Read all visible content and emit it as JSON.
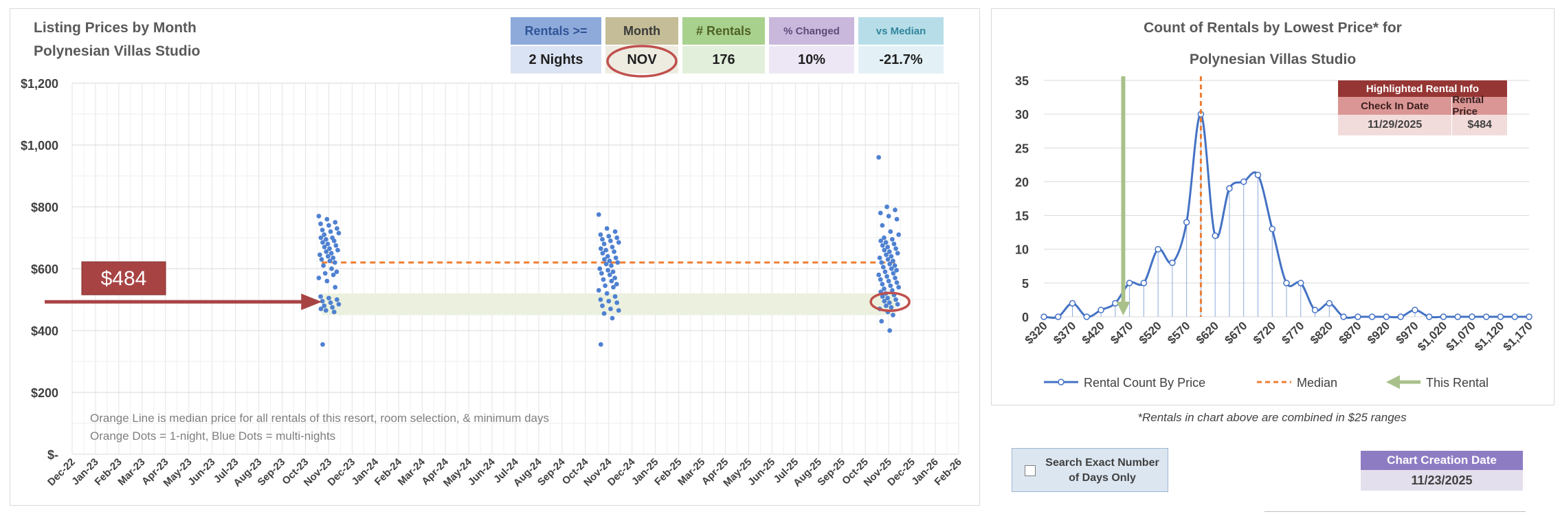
{
  "left": {
    "title_line1": "Listing Prices by Month",
    "title_line2": "Polynesian Villas Studio",
    "header": [
      {
        "label": "Rentals >=",
        "value": "2 Nights",
        "head_bg": "#8eaadb",
        "head_fg": "#2f5597",
        "val_bg": "#dae3f3"
      },
      {
        "label": "Month",
        "value": "NOV",
        "head_bg": "#c4bd97",
        "head_fg": "#3a3a3a",
        "val_bg": "#eeece1"
      },
      {
        "label": "# Rentals",
        "value": "176",
        "head_bg": "#a9d18e",
        "head_fg": "#4f6228",
        "val_bg": "#e2efda"
      },
      {
        "label": "% Changed",
        "value": "10%",
        "head_bg": "#c9b8dc",
        "head_fg": "#5f497a",
        "val_bg": "#ede7f5"
      },
      {
        "label": "vs Median",
        "value": "-21.7%",
        "head_bg": "#b7dee8",
        "head_fg": "#31859c",
        "val_bg": "#e3f1f6"
      }
    ],
    "price_callout": "$484",
    "note_line1": "Orange Line is median price for all rentals of this resort, room selection, & minimum days",
    "note_line2": "Orange Dots = 1-night, Blue Dots = multi-nights"
  },
  "chart_data": [
    {
      "type": "scatter",
      "title": "Listing Prices by Month",
      "subtitle": "Polynesian Villas Studio",
      "x_categories": [
        "Dec-22",
        "Jan-23",
        "Feb-23",
        "Mar-23",
        "Apr-23",
        "May-23",
        "Jun-23",
        "Jul-23",
        "Aug-23",
        "Sep-23",
        "Oct-23",
        "Nov-23",
        "Dec-23",
        "Jan-24",
        "Feb-24",
        "Mar-24",
        "Apr-24",
        "May-24",
        "Jun-24",
        "Jul-24",
        "Aug-24",
        "Sep-24",
        "Oct-24",
        "Nov-24",
        "Dec-24",
        "Jan-25",
        "Feb-25",
        "Mar-25",
        "Apr-25",
        "May-25",
        "Jun-25",
        "Jul-25",
        "Aug-25",
        "Sep-25",
        "Oct-25",
        "Nov-25",
        "Dec-25",
        "Jan-26",
        "Feb-26"
      ],
      "y_ticks": [
        "$-",
        "$200",
        "$400",
        "$600",
        "$800",
        "$1,000",
        "$1,200"
      ],
      "ylim": [
        0,
        1200
      ],
      "median": 620,
      "highlight_price": 484,
      "highlight_band": [
        450,
        520
      ],
      "grid": true,
      "series": [
        {
          "values": [
            {
              "x": "Nov-23",
              "y": [
                770,
                760,
                750,
                745,
                740,
                730,
                725,
                720,
                715,
                710,
                700,
                700,
                695,
                690,
                685,
                680,
                675,
                670,
                665,
                660,
                655,
                650,
                645,
                640,
                635,
                630,
                625,
                620,
                610,
                600,
                590,
                585,
                580,
                570,
                560,
                540,
                510,
                505,
                500,
                495,
                490,
                485,
                480,
                475,
                470,
                465,
                460,
                355
              ]
            },
            {
              "x": "Nov-24",
              "y": [
                775,
                730,
                720,
                710,
                705,
                700,
                695,
                690,
                685,
                680,
                670,
                665,
                660,
                655,
                650,
                640,
                635,
                630,
                625,
                620,
                615,
                610,
                600,
                595,
                590,
                585,
                580,
                570,
                565,
                560,
                550,
                545,
                540,
                530,
                520,
                510,
                500,
                495,
                490,
                480,
                470,
                465,
                455,
                440,
                355
              ]
            },
            {
              "x": "Nov-25",
              "y": [
                960,
                800,
                790,
                780,
                770,
                760,
                740,
                720,
                710,
                700,
                695,
                690,
                685,
                680,
                675,
                670,
                665,
                660,
                655,
                650,
                645,
                640,
                635,
                630,
                625,
                620,
                615,
                610,
                605,
                600,
                595,
                590,
                585,
                580,
                575,
                570,
                565,
                560,
                555,
                550,
                545,
                540,
                535,
                530,
                525,
                520,
                515,
                510,
                505,
                500,
                495,
                490,
                485,
                480,
                475,
                470,
                460,
                450,
                430,
                400
              ]
            }
          ]
        }
      ]
    },
    {
      "type": "line",
      "title": "Count of Rentals by Lowest Price* for",
      "subtitle": "Polynesian Villas Studio",
      "x_tick_labels": [
        "$320",
        "$370",
        "$420",
        "$470",
        "$520",
        "$570",
        "$620",
        "$670",
        "$720",
        "$770",
        "$820",
        "$870",
        "$920",
        "$970",
        "$1,020",
        "$1,070",
        "$1,120",
        "$1,170"
      ],
      "x": [
        320,
        345,
        370,
        395,
        420,
        445,
        470,
        495,
        520,
        545,
        570,
        595,
        620,
        645,
        670,
        695,
        720,
        745,
        770,
        795,
        820,
        845,
        870,
        895,
        920,
        945,
        970,
        995,
        1020,
        1045,
        1070,
        1095,
        1120,
        1145,
        1170
      ],
      "values": [
        0,
        0,
        2,
        0,
        1,
        2,
        5,
        5,
        10,
        8,
        14,
        30,
        12,
        19,
        20,
        21,
        13,
        5,
        5,
        1,
        2,
        0,
        0,
        0,
        0,
        0,
        1,
        0,
        0,
        0,
        0,
        0,
        0,
        0,
        0
      ],
      "ylim": [
        0,
        35
      ],
      "y_ticks": [
        0,
        5,
        10,
        15,
        20,
        25,
        30,
        35
      ],
      "median": 595,
      "this_rental": 459,
      "legend": [
        "Rental Count By Price",
        "Median",
        "This Rental"
      ],
      "legend_position": "bottom",
      "grid": true
    }
  ],
  "right": {
    "info_title": "Highlighted Rental Info",
    "info_col1": "Check In Date",
    "info_col2": "Rental Price",
    "info_date": "11/29/2025",
    "info_price": "$484",
    "footnote": "*Rentals in chart above are combined in $25 ranges"
  },
  "controls": {
    "exact_label": "Search Exact Number of Days Only",
    "date_label": "Chart Creation Date",
    "date_value": "11/23/2025"
  },
  "colors": {
    "blue": "#4472c4",
    "dot": "#4f81d1",
    "orange": "#ed7d31",
    "green": "#a9c08a",
    "red": "#a84344",
    "band": "#ebf1de"
  }
}
